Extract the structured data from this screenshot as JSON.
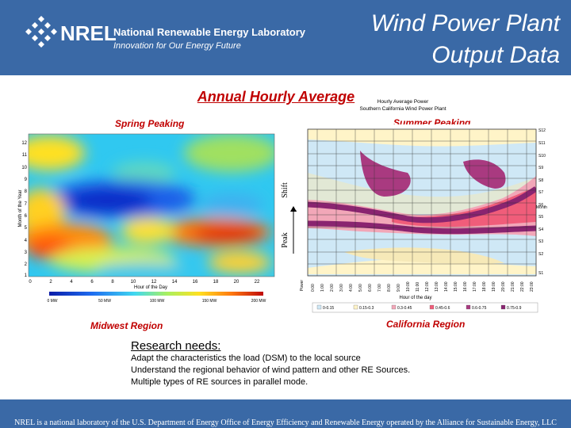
{
  "header": {
    "org_name": "NREL",
    "lab_name": "National Renewable Energy Laboratory",
    "tagline": "Innovation for Our Energy Future",
    "title_line1": "Wind Power Plant",
    "title_line2": "Output Data"
  },
  "colors": {
    "header_bg": "#3a69a6",
    "accent_red": "#c00000"
  },
  "subtitle": "Annual Hourly Average",
  "labels": {
    "spring": "Spring Peaking",
    "summer": "Summer Peaking",
    "midwest": "Midwest Region",
    "california": "California Region",
    "peak": "Peak",
    "shift": "Shift"
  },
  "heatmap": {
    "ylabel": "Month of the Year",
    "xlabel": "Hour of the Day",
    "yticks": [
      "12",
      "11",
      "10",
      "9",
      "8",
      "7",
      "6",
      "5",
      "4",
      "3",
      "2",
      "1"
    ],
    "xticks": [
      "0",
      "2",
      "4",
      "6",
      "8",
      "10",
      "12",
      "14",
      "16",
      "18",
      "20",
      "22"
    ],
    "scale": [
      "0 MW",
      "50 MW",
      "100 MW",
      "150 MW",
      "200 MW"
    ]
  },
  "calchart": {
    "title_line1": "Hourly Average Power",
    "title_line2": "Southern California Wind Power Plant",
    "power_label": "Power",
    "xlabel": "Hour of the day",
    "ylabel": "Month",
    "yticks": [
      "S12",
      "S11",
      "S10",
      "S9",
      "S8",
      "S7",
      "S6",
      "S5",
      "S4",
      "S3",
      "S2",
      "S1"
    ],
    "xticks": [
      "0:00",
      "1:00",
      "2:00",
      "3:00",
      "4:00",
      "5:00",
      "6:00",
      "7:00",
      "8:00",
      "9:00",
      "10:00",
      "11:00",
      "12:00",
      "13:00",
      "14:00",
      "15:00",
      "16:00",
      "17:00",
      "18:00",
      "19:00",
      "20:00",
      "21:00",
      "22:00",
      "23:00"
    ],
    "legend": [
      "0-0.15",
      "0.15-0.3",
      "0.3-0.45",
      "0.45-0.6",
      "0.6-0.75",
      "0.75-0.9"
    ]
  },
  "research": {
    "title": "Research needs:",
    "items": [
      "Adapt the characteristics the load (DSM) to the local source",
      "Understand the regional behavior of wind pattern and other RE Sources.",
      "Multiple types of RE sources in parallel mode."
    ]
  },
  "footer": "NREL is a national laboratory of the U.S. Department of Energy Office of Energy Efficiency and Renewable Energy operated by the Alliance for Sustainable Energy, LLC"
}
